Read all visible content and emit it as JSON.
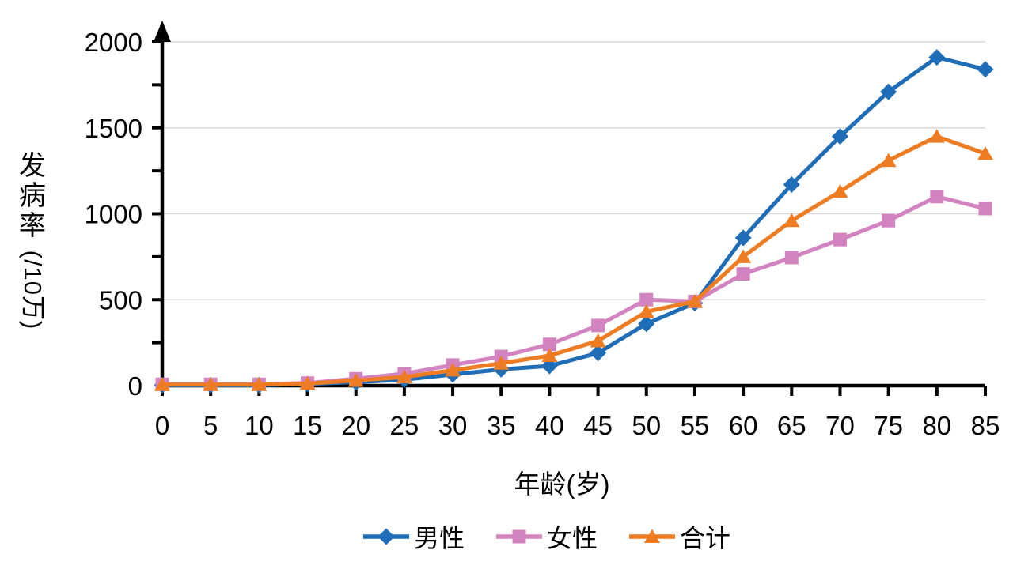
{
  "chart_data": {
    "type": "line",
    "x": [
      0,
      5,
      10,
      15,
      20,
      25,
      30,
      35,
      40,
      45,
      50,
      55,
      60,
      65,
      70,
      75,
      80,
      85
    ],
    "series": [
      {
        "key": "male",
        "name": "男性",
        "marker": "diamond",
        "color": "#1f6db6",
        "values": [
          3,
          3,
          3,
          10,
          20,
          35,
          65,
          95,
          115,
          190,
          360,
          480,
          860,
          1170,
          1450,
          1710,
          1910,
          1840
        ]
      },
      {
        "key": "female",
        "name": "女性",
        "marker": "square",
        "color": "#d383bf",
        "values": [
          8,
          8,
          8,
          15,
          40,
          70,
          120,
          170,
          240,
          350,
          500,
          490,
          650,
          745,
          850,
          960,
          1100,
          1030
        ]
      },
      {
        "key": "total",
        "name": "合计",
        "marker": "triangle",
        "color": "#ee7c22",
        "values": [
          6,
          6,
          6,
          12,
          30,
          50,
          90,
          130,
          175,
          260,
          430,
          490,
          750,
          960,
          1130,
          1310,
          1450,
          1350
        ]
      }
    ],
    "title": "",
    "xlabel": "年龄(岁)",
    "ylabel": "发病率(/10万)",
    "ylabel_upright_chars": [
      "发",
      "病",
      "率"
    ],
    "ylabel_rotated_part": "(/10万)",
    "xlim": [
      0,
      85
    ],
    "ylim": [
      0,
      2000
    ],
    "x_ticks": [
      0,
      5,
      10,
      15,
      20,
      25,
      30,
      35,
      40,
      45,
      50,
      55,
      60,
      65,
      70,
      75,
      80,
      85
    ],
    "y_ticks": [
      0,
      500,
      1000,
      1500,
      2000
    ],
    "y_minor_tick_step": 250,
    "grid": "horizontal",
    "legend_position": "bottom",
    "axis_color": "#000000",
    "grid_color": "#d9d9d9",
    "y_axis_arrow": true
  }
}
